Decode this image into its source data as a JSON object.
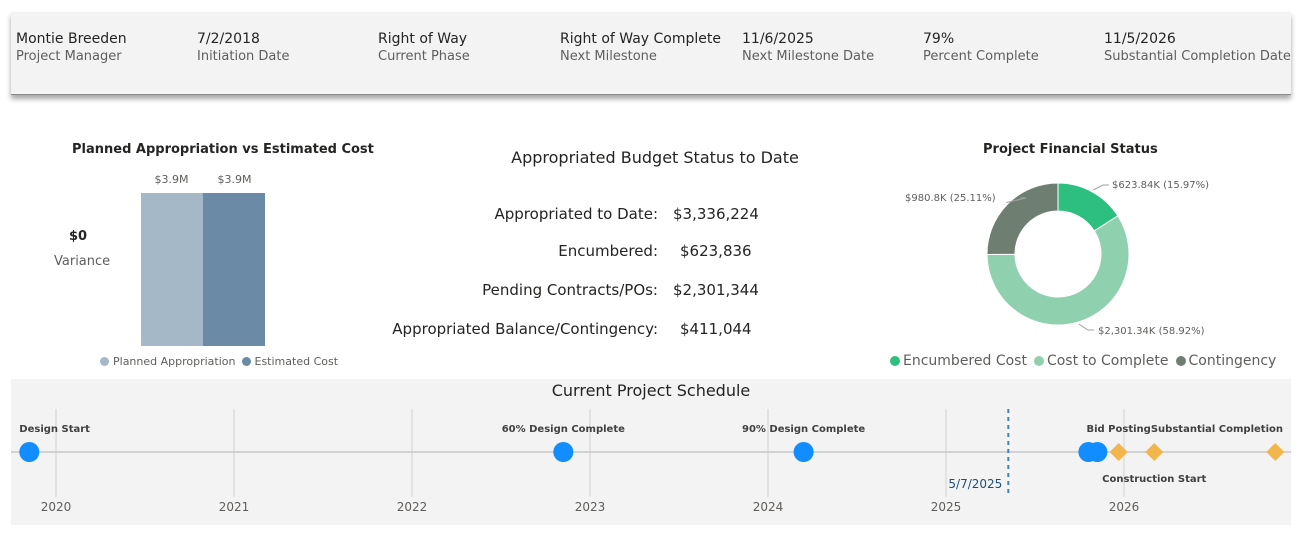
{
  "header": {
    "kpis": [
      {
        "value": "Montie Breeden",
        "label": "Project Manager"
      },
      {
        "value": "7/2/2018",
        "label": "Initiation Date"
      },
      {
        "value": "Right of Way",
        "label": "Current Phase"
      },
      {
        "value": "Right of Way Complete",
        "label": "Next Milestone"
      },
      {
        "value": "11/6/2025",
        "label": "Next Milestone Date"
      },
      {
        "value": "79%",
        "label": "Percent Complete"
      },
      {
        "value": "11/5/2026",
        "label": "Substantial Completion Date"
      }
    ]
  },
  "appropriation_chart": {
    "title": "Planned Appropriation vs Estimated Cost",
    "variance_value": "$0",
    "variance_label": "Variance",
    "bars": [
      {
        "name": "Planned Appropriation",
        "value": 3.9,
        "label": "$3.9M",
        "color": "#a5b8c8"
      },
      {
        "name": "Estimated Cost",
        "value": 3.9,
        "label": "$3.9M",
        "color": "#6a8aa5"
      }
    ],
    "legend": [
      "Planned Appropriation",
      "Estimated Cost"
    ]
  },
  "budget_status": {
    "title": "Appropriated Budget Status to Date",
    "rows": [
      {
        "label": "Appropriated to Date:",
        "value": "$3,336,224"
      },
      {
        "label": "Encumbered:",
        "value": "$623,836"
      },
      {
        "label": "Pending Contracts/POs:",
        "value": "$2,301,344"
      },
      {
        "label": "Appropriated Balance/Contingency:",
        "value": "$411,044"
      }
    ]
  },
  "chart_data": {
    "type": "pie",
    "title": "Project Financial Status",
    "donut": true,
    "slices": [
      {
        "name": "Encumbered Cost",
        "value": 623.84,
        "percent": 15.97,
        "label": "$623.84K (15.97%)",
        "color": "#2dbf7f"
      },
      {
        "name": "Cost to Complete",
        "value": 2301.34,
        "percent": 58.92,
        "label": "$2,301.34K (58.92%)",
        "color": "#8fd1ae"
      },
      {
        "name": "Contingency",
        "value": 980.8,
        "percent": 25.11,
        "label": "$980.8K (25.11%)",
        "color": "#6e7f72"
      }
    ],
    "legend": [
      "Encumbered Cost",
      "Cost to Complete",
      "Contingency"
    ]
  },
  "schedule": {
    "title": "Current Project Schedule",
    "years": [
      "2020",
      "2021",
      "2022",
      "2023",
      "2024",
      "2025",
      "2026"
    ],
    "today_label": "5/7/2025",
    "milestones": [
      {
        "label": "Design Start",
        "year_frac": 2019.85,
        "shape": "circle",
        "color": "#118dff"
      },
      {
        "label": "60% Design Complete",
        "year_frac": 2022.85,
        "shape": "circle",
        "color": "#118dff"
      },
      {
        "label": "90% Design Complete",
        "year_frac": 2024.2,
        "shape": "circle",
        "color": "#118dff"
      },
      {
        "label": "",
        "year_frac": 2025.8,
        "shape": "circle",
        "color": "#118dff"
      },
      {
        "label": "",
        "year_frac": 2025.85,
        "shape": "circle",
        "color": "#118dff"
      },
      {
        "label": "Bid Posting",
        "year_frac": 2025.97,
        "shape": "diamond",
        "color": "#f2b64c"
      },
      {
        "label": "Construction Start",
        "year_frac": 2026.17,
        "shape": "diamond",
        "color": "#f2b64c"
      },
      {
        "label": "Substantial Completion",
        "year_frac": 2026.85,
        "shape": "diamond",
        "color": "#f2b64c"
      }
    ]
  }
}
